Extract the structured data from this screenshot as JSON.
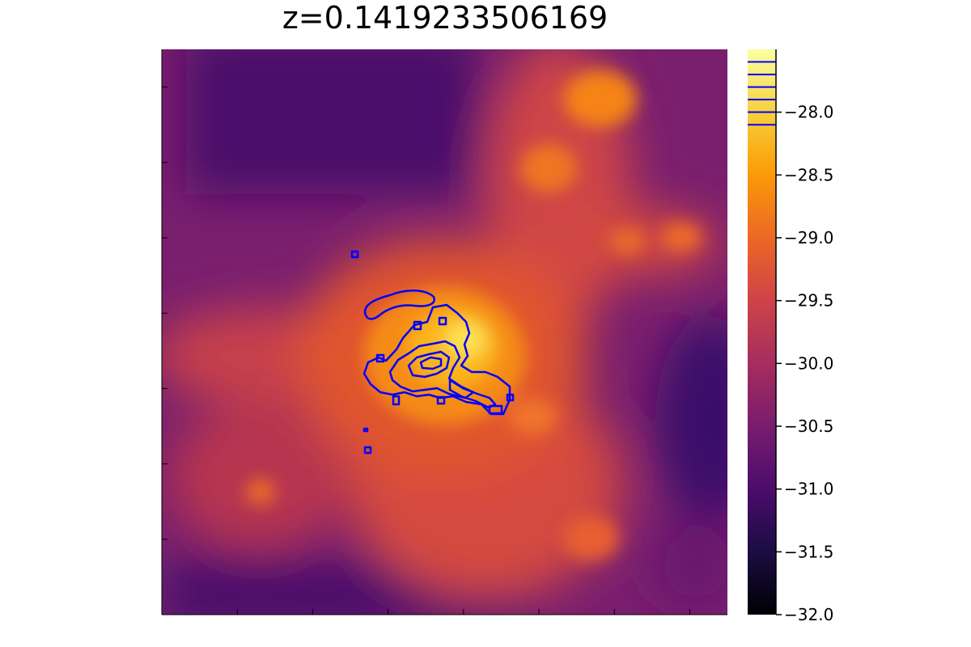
{
  "chart_data": {
    "type": "heatmap",
    "title": "z=0.1419233506169",
    "xlabel": "",
    "ylabel": "",
    "colormap": "inferno",
    "clim": [
      -32.0,
      -27.5
    ],
    "colorbar": {
      "ticks": [
        -28.0,
        -28.5,
        -29.0,
        -29.5,
        -30.0,
        -30.5,
        -31.0,
        -31.5,
        -32.0
      ],
      "tick_labels": [
        "−28.0",
        "−28.5",
        "−29.0",
        "−29.5",
        "−30.0",
        "−30.5",
        "−31.0",
        "−31.5",
        "−32.0"
      ],
      "contour_levels": [
        -27.6,
        -27.7,
        -27.8,
        -27.9,
        -28.0,
        -28.1
      ]
    },
    "contour_color": "#0000ff",
    "grid": false,
    "legend": "none"
  }
}
